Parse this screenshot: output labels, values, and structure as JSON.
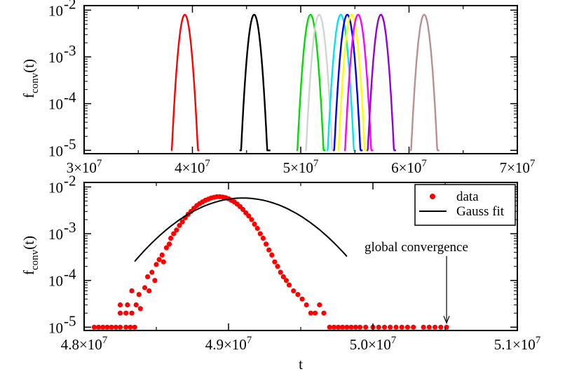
{
  "chart_data": [
    {
      "type": "line",
      "panel": "top",
      "ylabel": {
        "base": "f",
        "sub": "conv",
        "suffix": "(t)"
      },
      "xlabel": "",
      "y_scale": "log",
      "ylim": [
        8.5e-06,
        0.0125
      ],
      "xlim": [
        30000000,
        70000000
      ],
      "x_ticks": [
        {
          "value": 30000000,
          "mantissa": "3",
          "exp": "7"
        },
        {
          "value": 40000000,
          "mantissa": "4",
          "exp": "7"
        },
        {
          "value": 50000000,
          "mantissa": "5",
          "exp": "7"
        },
        {
          "value": 60000000,
          "mantissa": "6",
          "exp": "7"
        },
        {
          "value": 70000000,
          "mantissa": "7",
          "exp": "7"
        }
      ],
      "y_ticks": [
        {
          "value": 0.01,
          "exp": "-2"
        },
        {
          "value": 0.001,
          "exp": "-3"
        },
        {
          "value": 0.0001,
          "exp": "-4"
        },
        {
          "value": 1e-05,
          "exp": "-5"
        }
      ],
      "series": [
        {
          "color": "#ff0000",
          "center": 39300000,
          "width": 330000,
          "peak": 0.008,
          "xmin": 38050000,
          "xmax": 40650000
        },
        {
          "color": "#000000",
          "center": 45700000,
          "width": 330000,
          "peak": 0.008,
          "xmin": 44350000,
          "xmax": 47200000
        },
        {
          "color": "#00dd00",
          "center": 50900000,
          "width": 330000,
          "peak": 0.008,
          "xmin": 49600000,
          "xmax": 52300000
        },
        {
          "color": "#d3d3d3",
          "center": 51700000,
          "width": 330000,
          "peak": 0.008,
          "xmin": 50400000,
          "xmax": 53100000
        },
        {
          "color": "#00e5ee",
          "center": 53700000,
          "width": 330000,
          "peak": 0.008,
          "xmin": 52400000,
          "xmax": 55100000
        },
        {
          "color": "#0000ff",
          "center": 54300000,
          "width": 330000,
          "peak": 0.008,
          "xmin": 53000000,
          "xmax": 55700000
        },
        {
          "color": "#ffff00",
          "center": 54700000,
          "width": 330000,
          "peak": 0.008,
          "xmin": 53400000,
          "xmax": 56100000
        },
        {
          "color": "#ff00ff",
          "center": 55300000,
          "width": 330000,
          "peak": 0.008,
          "xmin": 54000000,
          "xmax": 56700000
        },
        {
          "color": "#9400d3",
          "center": 57400000,
          "width": 330000,
          "peak": 0.008,
          "xmin": 56100000,
          "xmax": 58800000
        },
        {
          "color": "#bc8f8f",
          "center": 61400000,
          "width": 330000,
          "peak": 0.008,
          "xmin": 60100000,
          "xmax": 62800000
        }
      ]
    },
    {
      "type": "scatter",
      "panel": "bottom",
      "ylabel": {
        "base": "f",
        "sub": "conv",
        "suffix": "(t)"
      },
      "xlabel": "t",
      "y_scale": "log",
      "ylim": [
        8.5e-06,
        0.0125
      ],
      "xlim": [
        48000000,
        51000000
      ],
      "x_ticks": [
        {
          "value": 48000000,
          "mantissa": "4.8",
          "exp": "7"
        },
        {
          "value": 49000000,
          "mantissa": "4.9",
          "exp": "7"
        },
        {
          "value": 50000000,
          "mantissa": "5.0",
          "exp": "7"
        },
        {
          "value": 51000000,
          "mantissa": "5.1",
          "exp": "7"
        }
      ],
      "y_ticks": [
        {
          "value": 0.01,
          "exp": "-2"
        },
        {
          "value": 0.001,
          "exp": "-3"
        },
        {
          "value": 0.0001,
          "exp": "-4"
        },
        {
          "value": 1e-05,
          "exp": "-5"
        }
      ],
      "series": [
        {
          "name": "data",
          "color": "#ff0000",
          "marker": "circle",
          "points": [
            [
              48070000,
              1e-05
            ],
            [
              48100000,
              1e-05
            ],
            [
              48130000,
              1e-05
            ],
            [
              48160000,
              1e-05
            ],
            [
              48190000,
              1e-05
            ],
            [
              48220000,
              1e-05
            ],
            [
              48250000,
              1e-05
            ],
            [
              48290000,
              1e-05
            ],
            [
              48320000,
              1e-05
            ],
            [
              48350000,
              1e-05
            ],
            [
              48250000,
              2e-05
            ],
            [
              48290000,
              2e-05
            ],
            [
              48330000,
              2e-05
            ],
            [
              48250000,
              3e-05
            ],
            [
              48300000,
              3e-05
            ],
            [
              48330000,
              6e-05
            ],
            [
              48360000,
              3e-05
            ],
            [
              48380000,
              5e-05
            ],
            [
              48390000,
              2.5e-05
            ],
            [
              48420000,
              7e-05
            ],
            [
              48440000,
              0.00012
            ],
            [
              48450000,
              6e-05
            ],
            [
              48470000,
              0.00015
            ],
            [
              48490000,
              0.0001
            ],
            [
              48500000,
              0.00022
            ],
            [
              48520000,
              0.00028
            ],
            [
              48540000,
              0.00035
            ],
            [
              48550000,
              0.00025
            ],
            [
              48570000,
              0.0005
            ],
            [
              48590000,
              0.0006
            ],
            [
              48600000,
              0.0008
            ],
            [
              48620000,
              0.001
            ],
            [
              48640000,
              0.0012
            ],
            [
              48660000,
              0.0015
            ],
            [
              48680000,
              0.0018
            ],
            [
              48700000,
              0.0022
            ],
            [
              48720000,
              0.0026
            ],
            [
              48740000,
              0.003
            ],
            [
              48760000,
              0.0035
            ],
            [
              48780000,
              0.004
            ],
            [
              48800000,
              0.0044
            ],
            [
              48820000,
              0.0048
            ],
            [
              48840000,
              0.0052
            ],
            [
              48860000,
              0.0055
            ],
            [
              48880000,
              0.0058
            ],
            [
              48900000,
              0.006
            ],
            [
              48920000,
              0.0062
            ],
            [
              48940000,
              0.0062
            ],
            [
              48960000,
              0.0061
            ],
            [
              48980000,
              0.0059
            ],
            [
              49000000,
              0.0056
            ],
            [
              49020000,
              0.0052
            ],
            [
              49040000,
              0.0048
            ],
            [
              49060000,
              0.0043
            ],
            [
              49080000,
              0.0038
            ],
            [
              49100000,
              0.0033
            ],
            [
              49120000,
              0.0028
            ],
            [
              49140000,
              0.0024
            ],
            [
              49160000,
              0.002
            ],
            [
              49180000,
              0.0016
            ],
            [
              49200000,
              0.0013
            ],
            [
              49220000,
              0.001
            ],
            [
              49240000,
              0.0008
            ],
            [
              49260000,
              0.0006
            ],
            [
              49280000,
              0.00045
            ],
            [
              49300000,
              0.00035
            ],
            [
              49320000,
              0.00025
            ],
            [
              49340000,
              0.0002
            ],
            [
              49360000,
              0.00015
            ],
            [
              49380000,
              0.00012
            ],
            [
              49400000,
              0.0001
            ],
            [
              49420000,
              8e-05
            ],
            [
              49450000,
              6e-05
            ],
            [
              49480000,
              5e-05
            ],
            [
              49510000,
              4e-05
            ],
            [
              49540000,
              3e-05
            ],
            [
              49570000,
              2e-05
            ],
            [
              49600000,
              2e-05
            ],
            [
              49630000,
              3e-05
            ],
            [
              49660000,
              2e-05
            ],
            [
              49700000,
              1e-05
            ],
            [
              49730000,
              1e-05
            ],
            [
              49760000,
              1e-05
            ],
            [
              49790000,
              1e-05
            ],
            [
              49820000,
              1e-05
            ],
            [
              49850000,
              1e-05
            ],
            [
              49880000,
              1e-05
            ],
            [
              49910000,
              1e-05
            ],
            [
              49950000,
              1e-05
            ],
            [
              50000000,
              1e-05
            ],
            [
              50040000,
              1e-05
            ],
            [
              50080000,
              1e-05
            ],
            [
              50120000,
              1e-05
            ],
            [
              50160000,
              1e-05
            ],
            [
              50200000,
              1e-05
            ],
            [
              50240000,
              1e-05
            ],
            [
              50280000,
              1e-05
            ],
            [
              50350000,
              1e-05
            ],
            [
              50390000,
              1e-05
            ],
            [
              50430000,
              1e-05
            ],
            [
              50470000,
              1e-05
            ],
            [
              50510000,
              1e-05
            ]
          ]
        },
        {
          "name": "Gauss fit",
          "color": "#000000",
          "marker": "line",
          "center": 49100000,
          "width": 300000,
          "peak": 0.0058,
          "xmin": 48350000,
          "xmax": 49820000
        }
      ],
      "legend": {
        "position": "top-right"
      },
      "annotation": {
        "text": "global convergence",
        "x": 50510000,
        "y": 1e-05
      }
    }
  ]
}
